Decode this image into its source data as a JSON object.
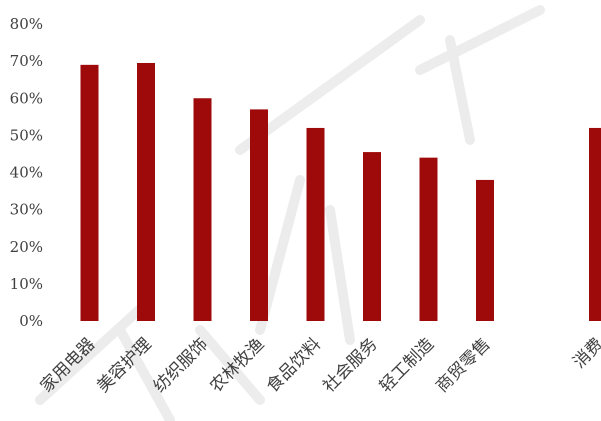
{
  "chart_data": {
    "type": "bar",
    "title": "",
    "xlabel": "",
    "ylabel": "",
    "categories": [
      "家用电器",
      "美容护理",
      "纺织服饰",
      "农林牧渔",
      "食品饮料",
      "社会服务",
      "轻工制造",
      "商贸零售",
      "",
      "消费"
    ],
    "values": [
      69,
      69.5,
      60,
      57,
      52,
      45.5,
      44,
      38,
      null,
      52
    ],
    "yticks": [
      "0%",
      "10%",
      "20%",
      "30%",
      "40%",
      "50%",
      "60%",
      "70%",
      "80%"
    ],
    "ylim": [
      0,
      80
    ],
    "grid": false,
    "legend": "none",
    "bar_color": "#9e0a0a",
    "background": "#ffffff"
  }
}
